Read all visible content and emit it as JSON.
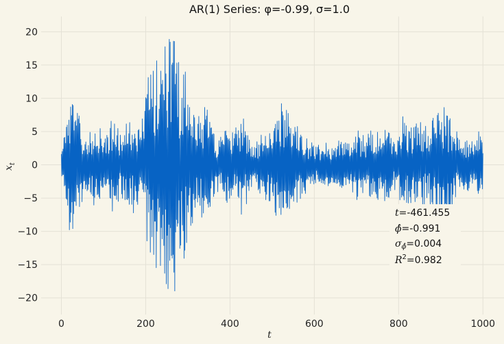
{
  "chart_data": {
    "type": "line",
    "title": "AR(1) Series: φ=-0.99, σ=1.0",
    "xlabel": "t",
    "ylabel": "x_t",
    "xlim": [
      -48,
      1050
    ],
    "ylim": [
      -22.5,
      22.3
    ],
    "x_ticks": [
      0,
      200,
      400,
      600,
      800,
      1000
    ],
    "y_ticks": [
      -20,
      -15,
      -10,
      -5,
      0,
      5,
      10,
      15,
      20
    ],
    "grid": true,
    "colors": {
      "background": "#f8f5e9",
      "grid": "#e4e1d6",
      "line": "#0763c4"
    },
    "series": [
      {
        "n_points": 1001,
        "envelope": {
          "t": [
            0,
            5,
            10,
            15,
            20,
            30,
            40,
            50,
            60,
            70,
            80,
            90,
            100,
            110,
            120,
            130,
            140,
            150,
            160,
            170,
            180,
            190,
            200,
            210,
            220,
            230,
            240,
            250,
            260,
            270,
            280,
            290,
            300,
            310,
            320,
            330,
            340,
            350,
            360,
            370,
            380,
            390,
            400,
            410,
            420,
            430,
            440,
            450,
            460,
            470,
            480,
            490,
            500,
            510,
            520,
            530,
            540,
            550,
            560,
            570,
            580,
            590,
            600,
            610,
            620,
            630,
            640,
            650,
            660,
            670,
            680,
            690,
            700,
            710,
            720,
            730,
            740,
            750,
            760,
            770,
            780,
            790,
            800,
            810,
            820,
            830,
            840,
            850,
            860,
            870,
            880,
            890,
            900,
            910,
            920,
            930,
            940,
            950,
            960,
            970,
            980,
            990,
            1000
          ],
          "amp": [
            2,
            4,
            7,
            9,
            10,
            10,
            8,
            5,
            4,
            5,
            7,
            6,
            4,
            5,
            7,
            6,
            5,
            6,
            7,
            7,
            6,
            6,
            11,
            14,
            16,
            17,
            18,
            19,
            20,
            19,
            17,
            15,
            12,
            9,
            7,
            8,
            10,
            8,
            5,
            4,
            4,
            6,
            5,
            5,
            6,
            8,
            6,
            4,
            3,
            4,
            5,
            5,
            7,
            9,
            10,
            9,
            8,
            7,
            6,
            5,
            5,
            3,
            3,
            3,
            3,
            3,
            3,
            3,
            4,
            4,
            3,
            4,
            5,
            5,
            4,
            5,
            5,
            6,
            6,
            6,
            5,
            4,
            5,
            7,
            6,
            6,
            6,
            7,
            6,
            5,
            7,
            8,
            9,
            9,
            8,
            6,
            5,
            4,
            4,
            4,
            4,
            5,
            4
          ]
        }
      }
    ],
    "annotations": {
      "t_label": "t",
      "t_value": "-461.455",
      "phi_label": "ϕ̂",
      "phi_value": "-0.991",
      "sigma_label": "σ",
      "sigma_sub": "ϕ̂",
      "sigma_value": "0.004",
      "r2_label": "R",
      "r2_sup": "2",
      "r2_value": "0.982"
    }
  }
}
